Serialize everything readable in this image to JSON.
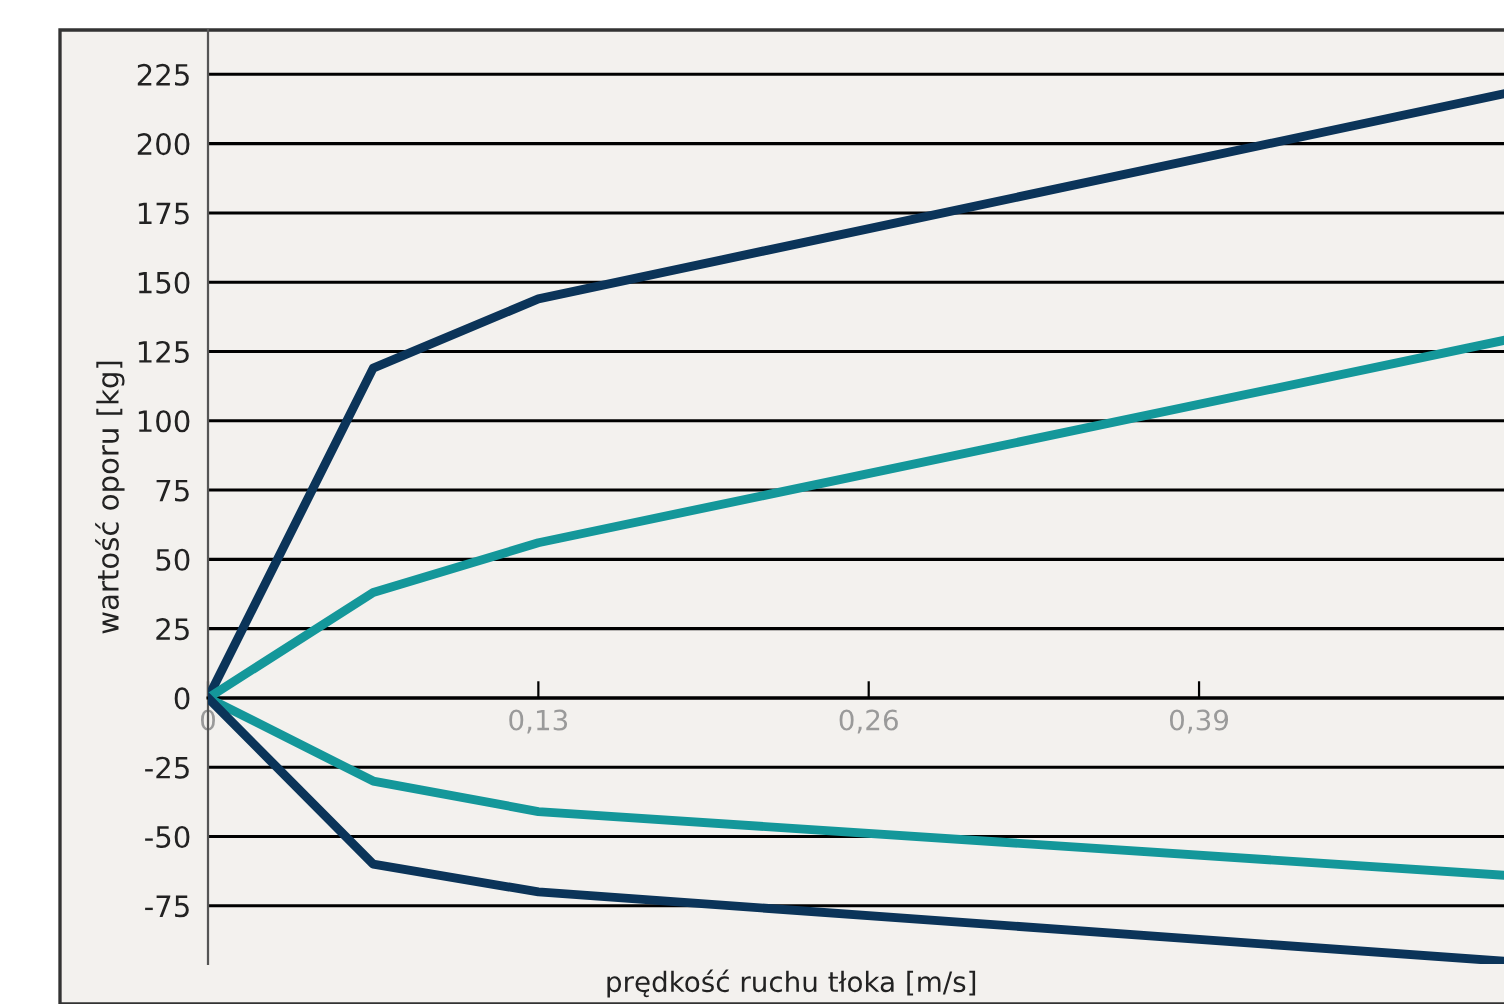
{
  "chart_data": {
    "type": "line",
    "xlabel": "prędkość ruchu tłoka [m/s]",
    "ylabel": "wartość oporu [kg]",
    "xlim": [
      0,
      0.51
    ],
    "xticks": [
      0,
      {
        "value": 0.13,
        "label": "0,13"
      },
      {
        "value": 0.26,
        "label": "0,26"
      },
      {
        "value": 0.39,
        "label": "0,39"
      }
    ],
    "ylim": [
      -96,
      241
    ],
    "yticks": [
      -75,
      -50,
      -25,
      0,
      25,
      50,
      75,
      100,
      125,
      150,
      175,
      200,
      225
    ],
    "grid": "y",
    "marker": "none",
    "line_style": "solid",
    "x": [
      0,
      0.065,
      0.13,
      0.51
    ],
    "series": [
      {
        "color": "#0b3459",
        "values": [
          0,
          119,
          144,
          218
        ]
      },
      {
        "color": "#14979a",
        "values": [
          0,
          38,
          56,
          129
        ]
      },
      {
        "color": "#14979a",
        "values": [
          0,
          -30,
          -41,
          -64
        ]
      },
      {
        "color": "#0b3459",
        "values": [
          0,
          -60,
          -70,
          -95
        ]
      }
    ]
  }
}
